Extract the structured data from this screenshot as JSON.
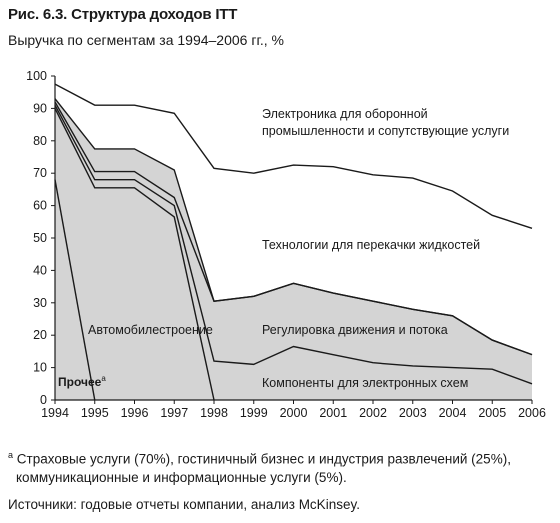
{
  "title": "Рис. 6.3. Структура доходов ITT",
  "subtitle": "Выручка по сегментам за 1994–2006 гг., %",
  "chart_data": {
    "type": "area",
    "x": [
      1994,
      1995,
      1996,
      1997,
      1998,
      1999,
      2000,
      2001,
      2002,
      2003,
      2004,
      2005,
      2006
    ],
    "ylim": [
      0,
      100
    ],
    "yticks": [
      0,
      10,
      20,
      30,
      40,
      50,
      60,
      70,
      80,
      90,
      100
    ],
    "grid": false,
    "boundaries": [
      {
        "name": "Прочее",
        "values": [
          68,
          0,
          null,
          null,
          null,
          null,
          null,
          null,
          null,
          null,
          null,
          null,
          null
        ]
      },
      {
        "name": "Автомобилестроение",
        "values": [
          90,
          65.5,
          65.5,
          56.5,
          0,
          null,
          null,
          null,
          null,
          null,
          null,
          null,
          null
        ]
      },
      {
        "name": "Компоненты для электронных схем",
        "values": [
          91,
          68,
          68,
          60,
          12,
          11,
          16.5,
          14,
          11.5,
          10.5,
          10,
          9.5,
          5
        ]
      },
      {
        "name": "Регулировка движения и потока",
        "values": [
          92,
          70.5,
          70.5,
          62.5,
          30.5,
          32,
          36,
          33,
          30.5,
          28,
          26,
          18.5,
          14
        ]
      },
      {
        "name": "Технологии для перекачки жидкостей",
        "values": [
          93,
          77.5,
          77.5,
          71,
          30.5,
          32,
          36,
          33,
          30.5,
          28,
          26,
          18.5,
          14
        ]
      },
      {
        "name": "Электроника для оборонной промышленности и сопутствующие услуги",
        "values": [
          97.5,
          91,
          91,
          88.5,
          71.5,
          70,
          72.5,
          72,
          69.5,
          68.5,
          64.5,
          57,
          53
        ]
      }
    ],
    "shaded_bands": [
      [
        2,
        3
      ],
      [
        3,
        4
      ]
    ],
    "annotations": {
      "defense_line1": "Электроника для оборонной",
      "defense_line2": "промышленности и сопутствующие услуги",
      "pumps": "Технологии для перекачки жидкостей",
      "auto": "Автомобилестроение",
      "flow": "Регулировка движения и потока",
      "components": "Компоненты для электронных схем",
      "other": "Прочее",
      "other_marker": "a"
    }
  },
  "footnote": {
    "marker": "a",
    "line1": "Страховые услуги (70%), гостиничный бизнес и индустрия развлечений (25%),",
    "line2": "коммуникационные и информационные услуги (5%)."
  },
  "source": "Источники: годовые отчеты компании, анализ McKinsey."
}
